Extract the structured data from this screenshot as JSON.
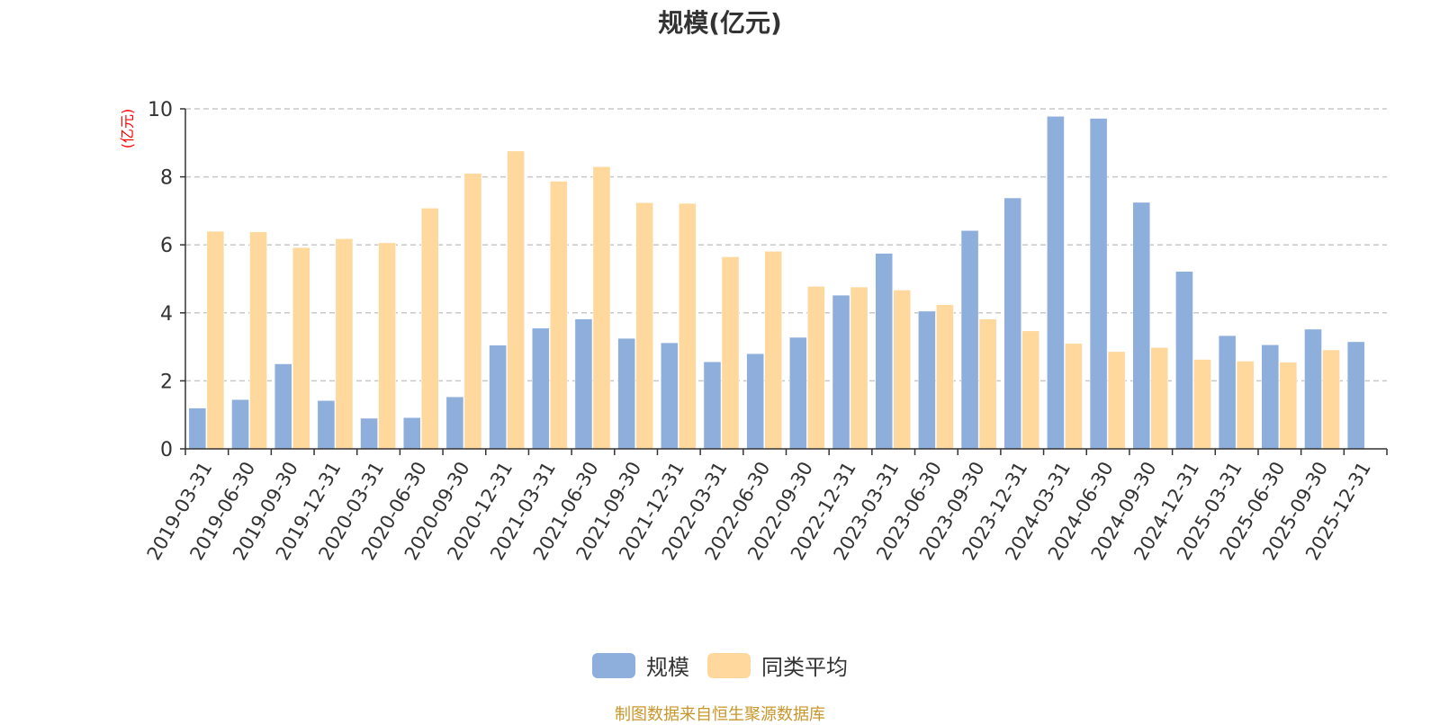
{
  "chart_data": {
    "type": "bar",
    "title": "规模(亿元)",
    "ylabel": "(亿元)",
    "xlabel": "",
    "ylim": [
      0,
      10
    ],
    "yticks": [
      0,
      2,
      4,
      6,
      8,
      10
    ],
    "grid": true,
    "legend_position": "bottom",
    "categories": [
      "2019-03-31",
      "2019-06-30",
      "2019-09-30",
      "2019-12-31",
      "2020-03-31",
      "2020-06-30",
      "2020-09-30",
      "2020-12-31",
      "2021-03-31",
      "2021-06-30",
      "2021-09-30",
      "2021-12-31",
      "2022-03-31",
      "2022-06-30",
      "2022-09-30",
      "2022-12-31",
      "2023-03-31",
      "2023-06-30",
      "2023-09-30",
      "2023-12-31",
      "2024-03-31",
      "2024-06-30",
      "2024-09-30",
      "2024-12-31",
      "2025-03-31",
      "2025-06-30",
      "2025-09-30",
      "2025-12-31"
    ],
    "series": [
      {
        "name": "规模",
        "color": "#8eaedc",
        "values": [
          1.2,
          1.45,
          2.5,
          1.42,
          0.9,
          0.92,
          1.53,
          3.05,
          3.55,
          3.82,
          3.25,
          3.12,
          2.56,
          2.8,
          3.28,
          4.52,
          5.75,
          4.05,
          6.42,
          7.38,
          9.78,
          9.72,
          7.25,
          5.22,
          3.33,
          3.06,
          3.52,
          3.15
        ]
      },
      {
        "name": "同类平均",
        "color": "#fed89c",
        "values": [
          6.4,
          6.38,
          5.92,
          6.18,
          6.06,
          7.08,
          8.1,
          8.76,
          7.87,
          8.3,
          7.24,
          7.22,
          5.65,
          5.81,
          4.78,
          4.76,
          4.67,
          4.24,
          3.82,
          3.47,
          3.1,
          2.86,
          2.98,
          2.63,
          2.58,
          2.55,
          2.91,
          null
        ]
      }
    ]
  },
  "source_note": "制图数据来自恒生聚源数据库"
}
